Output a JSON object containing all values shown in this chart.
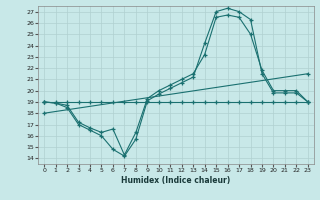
{
  "title": "",
  "xlabel": "Humidex (Indice chaleur)",
  "bg_color": "#c8e8e8",
  "grid_color": "#b0d0d0",
  "line_color": "#1a7070",
  "xlim": [
    -0.5,
    23.5
  ],
  "ylim": [
    13.5,
    27.5
  ],
  "xticks": [
    0,
    1,
    2,
    3,
    4,
    5,
    6,
    7,
    8,
    9,
    10,
    11,
    12,
    13,
    14,
    15,
    16,
    17,
    18,
    19,
    20,
    21,
    22,
    23
  ],
  "yticks": [
    14,
    15,
    16,
    17,
    18,
    19,
    20,
    21,
    22,
    23,
    24,
    25,
    26,
    27
  ],
  "line1_x": [
    0,
    1,
    2,
    3,
    4,
    5,
    6,
    7,
    8,
    9,
    10,
    11,
    12,
    13,
    14,
    15,
    16,
    17,
    18,
    19,
    20,
    21,
    22,
    23
  ],
  "line1_y": [
    19.0,
    18.9,
    18.7,
    17.2,
    16.7,
    16.3,
    16.6,
    14.3,
    16.3,
    19.3,
    20.0,
    20.5,
    21.0,
    21.5,
    23.2,
    26.5,
    26.7,
    26.5,
    25.0,
    21.8,
    20.0,
    20.0,
    20.0,
    19.0
  ],
  "line2_x": [
    0,
    1,
    2,
    3,
    4,
    5,
    6,
    7,
    8,
    9,
    10,
    11,
    12,
    13,
    14,
    15,
    16,
    17,
    18,
    19,
    20,
    21,
    22,
    23
  ],
  "line2_y": [
    19.0,
    18.9,
    18.5,
    17.0,
    16.5,
    16.0,
    14.8,
    14.2,
    15.7,
    19.1,
    19.7,
    20.2,
    20.7,
    21.2,
    24.2,
    27.0,
    27.3,
    27.0,
    26.3,
    21.5,
    19.8,
    19.8,
    19.8,
    19.0
  ],
  "line3_x": [
    0,
    1,
    2,
    3,
    4,
    5,
    6,
    7,
    8,
    9,
    10,
    11,
    12,
    13,
    14,
    15,
    16,
    17,
    18,
    19,
    20,
    21,
    22,
    23
  ],
  "line3_y": [
    19.0,
    19.0,
    19.0,
    19.0,
    19.0,
    19.0,
    19.0,
    19.0,
    19.0,
    19.0,
    19.0,
    19.0,
    19.0,
    19.0,
    19.0,
    19.0,
    19.0,
    19.0,
    19.0,
    19.0,
    19.0,
    19.0,
    19.0,
    19.0
  ],
  "line4_x": [
    0,
    23
  ],
  "line4_y": [
    18.0,
    21.5
  ]
}
